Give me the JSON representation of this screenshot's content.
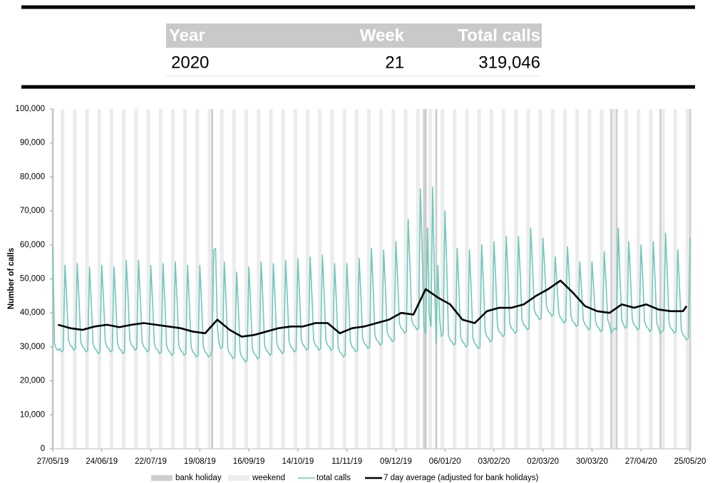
{
  "summary": {
    "headers": [
      "Year",
      "Week",
      "Total calls"
    ],
    "row": [
      "2020",
      "21",
      "319,046"
    ]
  },
  "chart_data": {
    "type": "line",
    "y_label": "Number of calls",
    "legend": "bottom",
    "xlim": [
      0,
      364
    ],
    "ylim": [
      0,
      100000
    ],
    "xticks": [
      {
        "value": 0,
        "label": "27/05/19"
      },
      {
        "value": 28,
        "label": "24/06/19"
      },
      {
        "value": 56,
        "label": "22/07/19"
      },
      {
        "value": 84,
        "label": "19/08/19"
      },
      {
        "value": 112,
        "label": "16/09/19"
      },
      {
        "value": 140,
        "label": "14/10/19"
      },
      {
        "value": 168,
        "label": "11/11/19"
      },
      {
        "value": 196,
        "label": "09/12/19"
      },
      {
        "value": 224,
        "label": "06/01/20"
      },
      {
        "value": 252,
        "label": "03/02/20"
      },
      {
        "value": 280,
        "label": "02/03/20"
      },
      {
        "value": 308,
        "label": "30/03/20"
      },
      {
        "value": 336,
        "label": "27/04/20"
      },
      {
        "value": 364,
        "label": "25/05/20"
      }
    ],
    "yticks": [
      0,
      {
        "value": 10000,
        "label": "10,000"
      },
      {
        "value": 20000,
        "label": "20,000"
      },
      {
        "value": 30000,
        "label": "30,000"
      },
      {
        "value": 40000,
        "label": "40,000"
      },
      {
        "value": 50000,
        "label": "50,000"
      },
      {
        "value": 60000,
        "label": "60,000"
      },
      {
        "value": 70000,
        "label": "70,000"
      },
      {
        "value": 80000,
        "label": "80,000"
      },
      {
        "value": 90000,
        "label": "90,000"
      },
      {
        "value": 100000,
        "label": "100,000"
      }
    ],
    "x": [
      0,
      1,
      2,
      3,
      4,
      5,
      6,
      7,
      8,
      9,
      10,
      11,
      12,
      13,
      14,
      15,
      16,
      17,
      18,
      19,
      20,
      21,
      22,
      23,
      24,
      25,
      26,
      27,
      28,
      29,
      30,
      31,
      32,
      33,
      34,
      35,
      36,
      37,
      38,
      39,
      40,
      41,
      42,
      43,
      44,
      45,
      46,
      47,
      48,
      49,
      50,
      51,
      52,
      53,
      54,
      55,
      56,
      57,
      58,
      59,
      60,
      61,
      62,
      63,
      64,
      65,
      66,
      67,
      68,
      69,
      70,
      71,
      72,
      73,
      74,
      75,
      76,
      77,
      78,
      79,
      80,
      81,
      82,
      83,
      84,
      85,
      86,
      87,
      88,
      89,
      90,
      91,
      92,
      93,
      94,
      95,
      96,
      97,
      98,
      99,
      100,
      101,
      102,
      103,
      104,
      105,
      106,
      107,
      108,
      109,
      110,
      111,
      112,
      113,
      114,
      115,
      116,
      117,
      118,
      119,
      120,
      121,
      122,
      123,
      124,
      125,
      126,
      127,
      128,
      129,
      130,
      131,
      132,
      133,
      134,
      135,
      136,
      137,
      138,
      139,
      140,
      141,
      142,
      143,
      144,
      145,
      146,
      147,
      148,
      149,
      150,
      151,
      152,
      153,
      154,
      155,
      156,
      157,
      158,
      159,
      160,
      161,
      162,
      163,
      164,
      165,
      166,
      167,
      168,
      169,
      170,
      171,
      172,
      173,
      174,
      175,
      176,
      177,
      178,
      179,
      180,
      181,
      182,
      183,
      184,
      185,
      186,
      187,
      188,
      189,
      190,
      191,
      192,
      193,
      194,
      195,
      196,
      197,
      198,
      199,
      200,
      201,
      202,
      203,
      204,
      205,
      206,
      207,
      208,
      209,
      210,
      211,
      212,
      213,
      214,
      215,
      216,
      217,
      218,
      219,
      220,
      221,
      222,
      223,
      224,
      225,
      226,
      227,
      228,
      229,
      230,
      231,
      232,
      233,
      234,
      235,
      236,
      237,
      238,
      239,
      240,
      241,
      242,
      243,
      244,
      245,
      246,
      247,
      248,
      249,
      250,
      251,
      252,
      253,
      254,
      255,
      256,
      257,
      258,
      259,
      260,
      261,
      262,
      263,
      264,
      265,
      266,
      267,
      268,
      269,
      270,
      271,
      272,
      273,
      274,
      275,
      276,
      277,
      278,
      279,
      280,
      281,
      282,
      283,
      284,
      285,
      286,
      287,
      288,
      289,
      290,
      291,
      292,
      293,
      294,
      295,
      296,
      297,
      298,
      299,
      300,
      301,
      302,
      303,
      304,
      305,
      306,
      307,
      308,
      309,
      310,
      311,
      312,
      313,
      314,
      315,
      316,
      317,
      318,
      319,
      320,
      321,
      322,
      323,
      324,
      325,
      326,
      327,
      328,
      329,
      330,
      331,
      332,
      333,
      334,
      335,
      336,
      337,
      338,
      339,
      340,
      341,
      342,
      343,
      344,
      345,
      346,
      347,
      348,
      349,
      350,
      351,
      352,
      353,
      354,
      355,
      356,
      357,
      358,
      359,
      360,
      361,
      362,
      363,
      364
    ],
    "series": [
      {
        "name": "bank holiday",
        "type": "band",
        "color": "#cdcdcd",
        "x": [
          0,
          91,
          212,
          213,
          219,
          319,
          322,
          347,
          364
        ]
      },
      {
        "name": "weekend",
        "type": "band",
        "color": "#ececec",
        "x": [
          5,
          6,
          12,
          13,
          19,
          20,
          26,
          27,
          33,
          34,
          40,
          41,
          47,
          48,
          54,
          55,
          61,
          62,
          68,
          69,
          75,
          76,
          82,
          83,
          89,
          90,
          96,
          97,
          103,
          104,
          110,
          111,
          117,
          118,
          124,
          125,
          131,
          132,
          138,
          139,
          145,
          146,
          152,
          153,
          159,
          160,
          166,
          167,
          173,
          174,
          180,
          181,
          187,
          188,
          194,
          195,
          201,
          202,
          208,
          209,
          215,
          216,
          222,
          223,
          229,
          230,
          236,
          237,
          243,
          244,
          250,
          251,
          257,
          258,
          264,
          265,
          271,
          272,
          278,
          279,
          285,
          286,
          292,
          293,
          299,
          300,
          306,
          307,
          313,
          314,
          320,
          321,
          327,
          328,
          334,
          335,
          341,
          342,
          348,
          349,
          355,
          356,
          362,
          363
        ]
      },
      {
        "name": "total calls",
        "type": "line",
        "color": "#6ec8ba",
        "values": [
          59500,
          31000,
          29500,
          29000,
          29500,
          28500,
          29000,
          54000,
          44000,
          32000,
          30500,
          30000,
          29000,
          29500,
          54500,
          44000,
          31500,
          30000,
          29500,
          28500,
          29000,
          53500,
          43000,
          31000,
          29500,
          29000,
          28000,
          28500,
          54000,
          44000,
          31500,
          30000,
          29500,
          28500,
          29000,
          53500,
          43000,
          31000,
          29500,
          29000,
          28000,
          28500,
          55500,
          45000,
          32000,
          30500,
          30000,
          29000,
          29500,
          55500,
          44500,
          31500,
          30000,
          29500,
          28500,
          29000,
          54000,
          43500,
          31000,
          29500,
          29000,
          28000,
          28500,
          54500,
          43500,
          30500,
          29000,
          28500,
          27500,
          28000,
          55000,
          44000,
          30500,
          29000,
          28500,
          27500,
          28000,
          54000,
          43000,
          30000,
          28500,
          28000,
          27000,
          27500,
          54000,
          43000,
          30000,
          28500,
          28000,
          27000,
          27500,
          29000,
          58500,
          59000,
          36000,
          31000,
          29500,
          30000,
          55000,
          43500,
          29500,
          28000,
          27500,
          26500,
          27000,
          52000,
          41500,
          28500,
          27000,
          26500,
          25500,
          26000,
          53500,
          42500,
          29500,
          28000,
          27500,
          26500,
          27000,
          55000,
          44000,
          30500,
          29000,
          28500,
          27500,
          28000,
          54500,
          44000,
          31000,
          29500,
          29000,
          28000,
          28500,
          55500,
          44500,
          31500,
          30000,
          29500,
          28500,
          29000,
          56000,
          45000,
          32000,
          30500,
          30000,
          29000,
          29500,
          56500,
          45500,
          32000,
          30500,
          30000,
          29000,
          29500,
          57000,
          46000,
          32000,
          30500,
          30000,
          29000,
          29500,
          54500,
          43500,
          30000,
          28500,
          28000,
          27000,
          27500,
          54500,
          44000,
          31500,
          30000,
          29500,
          28500,
          29000,
          56000,
          45500,
          32500,
          31000,
          30500,
          29500,
          30000,
          59000,
          47500,
          33500,
          32000,
          31500,
          30500,
          31000,
          58500,
          47500,
          34500,
          33000,
          32500,
          31500,
          32000,
          61000,
          50000,
          37000,
          35500,
          35000,
          34000,
          34500,
          67500,
          54500,
          38000,
          36500,
          36000,
          35000,
          35500,
          76500,
          58000,
          36000,
          34000,
          65000,
          40000,
          36000,
          77000,
          50000,
          31000,
          54000,
          38000,
          33000,
          34000,
          70000,
          54500,
          33500,
          32000,
          31500,
          30500,
          31000,
          59000,
          47000,
          33000,
          31500,
          31000,
          30000,
          30500,
          58500,
          47000,
          32500,
          31000,
          30500,
          29500,
          30000,
          60000,
          48500,
          34500,
          33000,
          32500,
          31500,
          32000,
          61000,
          50000,
          36000,
          34500,
          34000,
          33000,
          33500,
          62500,
          51000,
          37000,
          35500,
          35000,
          34000,
          34500,
          62500,
          51500,
          38000,
          36500,
          36000,
          35000,
          35500,
          65000,
          54000,
          41000,
          39500,
          39000,
          38000,
          38500,
          62000,
          53000,
          42000,
          40500,
          40000,
          39000,
          39500,
          56500,
          48500,
          40000,
          38500,
          38000,
          37000,
          37500,
          59500,
          50000,
          39000,
          37500,
          37000,
          36000,
          36500,
          55000,
          47000,
          38000,
          36500,
          36000,
          35000,
          35500,
          55000,
          47000,
          37500,
          36000,
          35500,
          34500,
          35000,
          58000,
          48500,
          38000,
          36500,
          34000,
          35000,
          35500,
          35000,
          65000,
          50000,
          38000,
          36500,
          35500,
          36000,
          61000,
          50500,
          38000,
          36500,
          36000,
          35000,
          35500,
          60000,
          50000,
          37500,
          36000,
          35500,
          34500,
          35000,
          61000,
          50000,
          37000,
          35500,
          34000,
          34500,
          35000,
          63500,
          51500,
          37000,
          35500,
          35000,
          34000,
          34500,
          58500,
          47500,
          35000,
          33500,
          33000,
          32000,
          32500,
          62000
        ]
      },
      {
        "name": "7 day average (adjusted for bank holidays)",
        "type": "line",
        "color": "#000000",
        "x": [
          3,
          10,
          17,
          24,
          31,
          38,
          45,
          52,
          59,
          66,
          73,
          80,
          87,
          94,
          101,
          108,
          115,
          122,
          129,
          136,
          143,
          150,
          157,
          164,
          171,
          178,
          185,
          192,
          199,
          206,
          213,
          220,
          227,
          234,
          241,
          248,
          255,
          262,
          269,
          276,
          283,
          290,
          297,
          304,
          311,
          318,
          325,
          332,
          339,
          346,
          353,
          360,
          362
        ],
        "values": [
          36500,
          35500,
          35000,
          36000,
          36500,
          35800,
          36500,
          37000,
          36500,
          36000,
          35500,
          34500,
          34000,
          38000,
          35000,
          33000,
          33500,
          34500,
          35500,
          36000,
          36000,
          37000,
          37000,
          34000,
          35500,
          36000,
          37000,
          38000,
          40000,
          39500,
          47000,
          44500,
          42500,
          38000,
          37000,
          40500,
          41500,
          41500,
          42500,
          45000,
          47000,
          49500,
          46000,
          42000,
          40500,
          40000,
          42500,
          41500,
          42500,
          41000,
          40500,
          40500,
          42000
        ]
      }
    ]
  }
}
